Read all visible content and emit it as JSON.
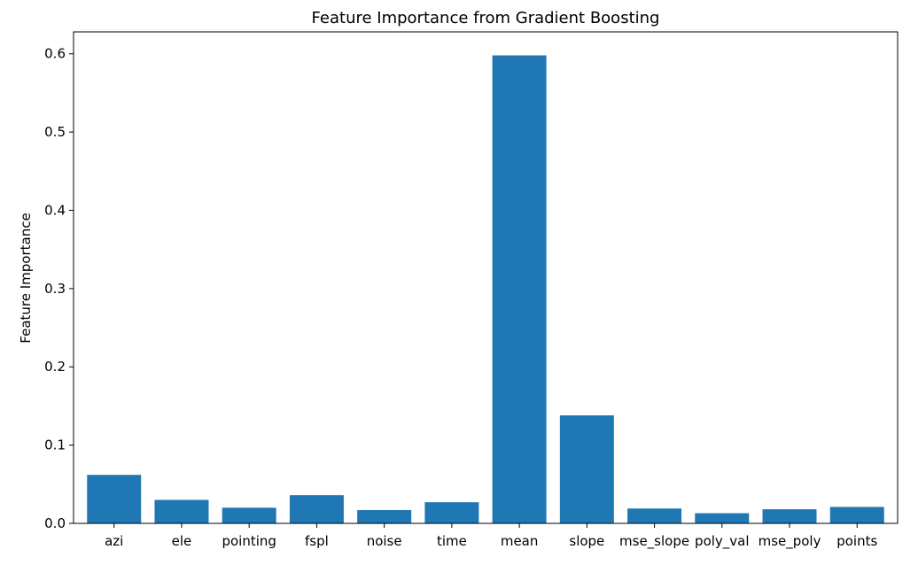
{
  "chart_data": {
    "type": "bar",
    "title": "Feature Importance from Gradient Boosting",
    "xlabel": "",
    "ylabel": "Feature Importance",
    "categories": [
      "azi",
      "ele",
      "pointing",
      "fspl",
      "noise",
      "time",
      "mean",
      "slope",
      "mse_slope",
      "poly_val",
      "mse_poly",
      "points"
    ],
    "values": [
      0.062,
      0.03,
      0.02,
      0.036,
      0.017,
      0.027,
      0.598,
      0.138,
      0.019,
      0.013,
      0.018,
      0.021
    ],
    "ylim": [
      0,
      0.628
    ],
    "yticks": [
      "0.0",
      "0.1",
      "0.2",
      "0.3",
      "0.4",
      "0.5",
      "0.6"
    ],
    "bar_color": "#1f77b4",
    "grid": false,
    "legend": "none"
  }
}
